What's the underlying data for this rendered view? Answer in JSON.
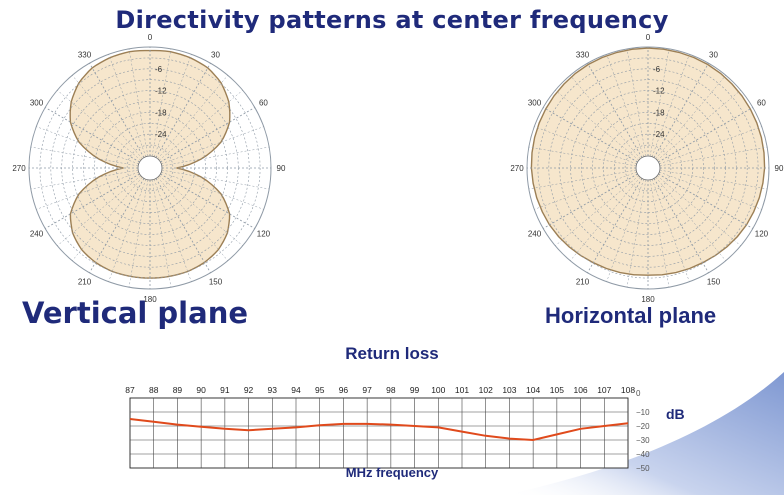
{
  "title": "Directivity patterns at center frequency",
  "vertical_label": "Vertical plane",
  "horizontal_label": "Horizontal plane",
  "return_loss": {
    "title": "Return loss",
    "xlabel": "MHz frequency",
    "unit": "dB"
  },
  "colors": {
    "title": "#1f2a7a",
    "pattern_fill": "#f6e6cc",
    "pattern_line": "#9c7f55",
    "grid": "#8f9aa6",
    "curve": "#e04a1c",
    "swoosh": "#9aaedb"
  },
  "chart_data": [
    {
      "type": "polar",
      "name": "vertical",
      "angle_labels": [
        "0",
        "30",
        "60",
        "90",
        "120",
        "150",
        "180",
        "210",
        "240",
        "270",
        "300",
        "330"
      ],
      "radial_labels": [
        "-6",
        "-12",
        "-18",
        "-24"
      ],
      "radial_range_db": [
        -30,
        0
      ],
      "pattern_angles_deg": [
        0,
        10,
        20,
        30,
        40,
        50,
        60,
        70,
        80,
        90,
        100,
        110,
        120,
        130,
        140,
        150,
        160,
        170,
        180,
        190,
        200,
        210,
        220,
        230,
        240,
        250,
        260,
        270,
        280,
        290,
        300,
        310,
        320,
        330,
        340,
        350
      ],
      "pattern_gain_db": [
        -1,
        -0.8,
        -1,
        -1.5,
        -2.8,
        -5,
        -8,
        -12.5,
        -19,
        -26,
        -19,
        -12.5,
        -8,
        -5.5,
        -4,
        -3.3,
        -3,
        -3,
        -3,
        -3,
        -3,
        -3.3,
        -4,
        -5.5,
        -8,
        -12.5,
        -19,
        -26,
        -19,
        -12.5,
        -8,
        -5,
        -2.8,
        -1.5,
        -1,
        -0.8
      ]
    },
    {
      "type": "polar",
      "name": "horizontal",
      "angle_labels": [
        "0",
        "30",
        "60",
        "90",
        "120",
        "150",
        "180",
        "210",
        "240",
        "270",
        "300",
        "330"
      ],
      "radial_labels": [
        "-6",
        "-12",
        "-18",
        "-24"
      ],
      "radial_range_db": [
        -30,
        0
      ],
      "pattern_angles_deg": [
        0,
        30,
        60,
        90,
        120,
        150,
        180,
        210,
        240,
        270,
        300,
        330
      ],
      "pattern_gain_db": [
        -0.3,
        -0.4,
        -0.8,
        -1.2,
        -2,
        -3.2,
        -3.8,
        -3.2,
        -2,
        -1.2,
        -0.8,
        -0.4
      ]
    },
    {
      "type": "line",
      "name": "return-loss",
      "categories": [
        "87",
        "88",
        "89",
        "90",
        "91",
        "92",
        "93",
        "94",
        "95",
        "96",
        "97",
        "98",
        "99",
        "100",
        "101",
        "102",
        "103",
        "104",
        "105",
        "106",
        "107",
        "108"
      ],
      "values": [
        -15,
        -17,
        -19,
        -20.5,
        -22,
        -23,
        -22,
        -21,
        -19.5,
        -18.5,
        -18.5,
        -19,
        -20,
        -21,
        -24,
        -27,
        -29,
        -30,
        -26,
        -22,
        -20,
        -18
      ],
      "y_tick_labels": [
        "0",
        "−10",
        "−20",
        "−30",
        "−40",
        "−50"
      ],
      "ylim": [
        -50,
        0
      ]
    }
  ]
}
